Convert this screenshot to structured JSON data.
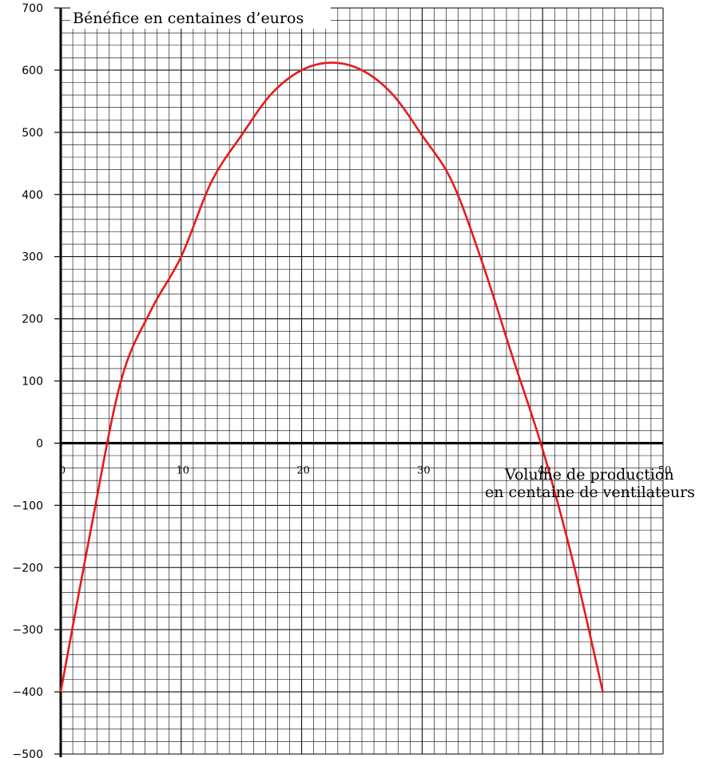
{
  "chart_data": {
    "type": "line",
    "title": "",
    "ylabel": "Bénéfice en centaines d’euros",
    "xlabel_line1": "Volume de production",
    "xlabel_line2": "en centaine de ventilateurs",
    "xlim": [
      0,
      50
    ],
    "ylim": [
      -500,
      700
    ],
    "x_ticks": [
      0,
      10,
      20,
      30,
      40,
      50
    ],
    "y_ticks": [
      -500,
      -400,
      -300,
      -200,
      -100,
      0,
      100,
      200,
      300,
      400,
      500,
      600,
      700
    ],
    "x_minor_step": 1,
    "y_minor_step": 20,
    "grid": true,
    "series": [
      {
        "color": "#e8191a",
        "x": [
          0,
          2.5,
          5,
          7.5,
          10,
          12.5,
          15,
          17.5,
          20,
          22.5,
          25,
          27.5,
          30,
          32.5,
          35,
          37.5,
          40,
          42.5,
          45
        ],
        "y": [
          -400,
          -139,
          100,
          214,
          300,
          420,
          495,
          562,
          600,
          612,
          600,
          562,
          495,
          420,
          290,
          139,
          -10,
          -189,
          -400
        ]
      }
    ]
  }
}
